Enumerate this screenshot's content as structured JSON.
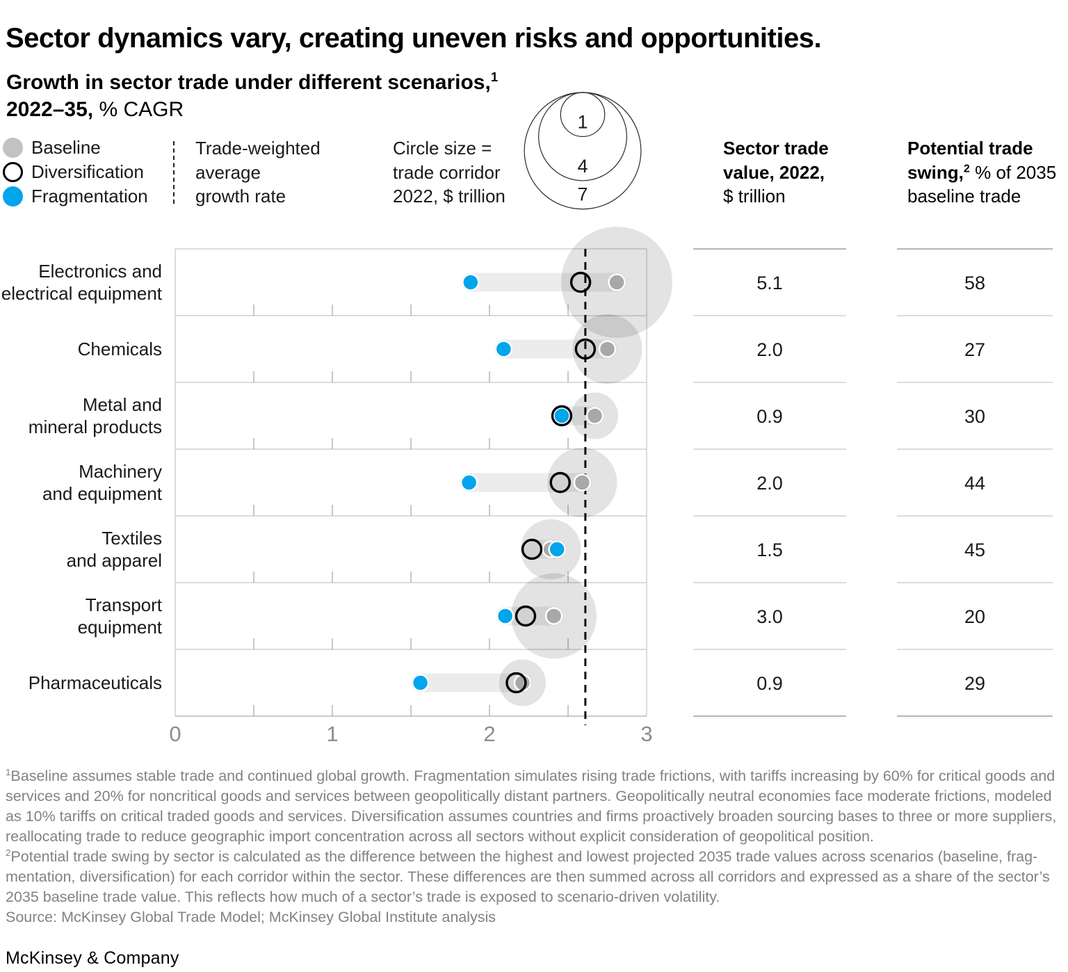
{
  "title": "Sector dynamics vary, creating uneven risks and opportunities.",
  "subtitle": {
    "line1_bold": "Growth in sector trade under different scenarios,",
    "line1_sup": "1",
    "line2_bold": "2022–35,",
    "line2_regular": " % CAGR"
  },
  "legend": {
    "baseline_label": "Baseline",
    "diversification_label": "Diversification",
    "fragmentation_label": "Fragmentation",
    "avg_line_lines": [
      "Trade-weighted",
      "average",
      "growth rate"
    ],
    "size_lines": [
      "Circle size =",
      "trade corridor",
      "2022, $ trillion"
    ]
  },
  "table": {
    "col1_header_lines": [
      "Sector trade",
      "value, 2022,",
      "$ trillion"
    ],
    "col2_header": {
      "line1": "Potential trade",
      "line2_bold": "swing,",
      "line2_sup": "2",
      "line2_rest": " % of 2035",
      "line3": "baseline trade"
    }
  },
  "chart_data": {
    "type": "scatter",
    "title": "Growth in sector trade under different scenarios, 2022–35, % CAGR",
    "x_axis": {
      "min": 0,
      "max": 3,
      "major_ticks": [
        0,
        1,
        2,
        3
      ],
      "minor_tick_step": 0.5
    },
    "series_names": [
      "Baseline",
      "Diversification",
      "Fragmentation"
    ],
    "trade_weighted_average_growth": 2.61,
    "bubble_size_legend_values": [
      1,
      4,
      7
    ],
    "bubble_size_meaning": "trade corridor 2022, $ trillion",
    "rows": [
      {
        "sector": "Electronics and electrical equipment",
        "label_lines": [
          "Electronics and",
          "electrical equipment"
        ],
        "baseline": 2.81,
        "diversification": 2.58,
        "fragmentation": 1.88,
        "trade_value_2022_usd_trillion": "5.1",
        "potential_trade_swing_pct": "58"
      },
      {
        "sector": "Chemicals",
        "label_lines": [
          "Chemicals"
        ],
        "baseline": 2.75,
        "diversification": 2.61,
        "fragmentation": 2.09,
        "trade_value_2022_usd_trillion": "2.0",
        "potential_trade_swing_pct": "27"
      },
      {
        "sector": "Metal and mineral products",
        "label_lines": [
          "Metal and",
          "mineral products"
        ],
        "baseline": 2.67,
        "diversification": 2.46,
        "fragmentation": 2.46,
        "trade_value_2022_usd_trillion": "0.9",
        "potential_trade_swing_pct": "30"
      },
      {
        "sector": "Machinery and equipment",
        "label_lines": [
          "Machinery",
          "and equipment"
        ],
        "baseline": 2.59,
        "diversification": 2.45,
        "fragmentation": 1.87,
        "trade_value_2022_usd_trillion": "2.0",
        "potential_trade_swing_pct": "44"
      },
      {
        "sector": "Textiles and apparel",
        "label_lines": [
          "Textiles",
          "and apparel"
        ],
        "baseline": 2.39,
        "diversification": 2.27,
        "fragmentation": 2.43,
        "trade_value_2022_usd_trillion": "1.5",
        "potential_trade_swing_pct": "45"
      },
      {
        "sector": "Transport equipment",
        "label_lines": [
          "Transport",
          "equipment"
        ],
        "baseline": 2.41,
        "diversification": 2.23,
        "fragmentation": 2.1,
        "trade_value_2022_usd_trillion": "3.0",
        "potential_trade_swing_pct": "20"
      },
      {
        "sector": "Pharmaceuticals",
        "label_lines": [
          "Pharmaceuticals"
        ],
        "baseline": 2.21,
        "diversification": 2.17,
        "fragmentation": 1.56,
        "trade_value_2022_usd_trillion": "0.9",
        "potential_trade_swing_pct": "29"
      }
    ]
  },
  "footnotes": [
    {
      "sup": "1",
      "lines": [
        "Baseline assumes stable trade and continued global growth. Fragmentation simulates rising trade frictions, with tariffs increasing by 60% for critical goods and",
        "services and 20% for noncritical goods and services between geopolitically distant partners. Geopolitically neutral economies face moderate frictions, modeled",
        "as 10% tariffs on critical traded goods and services. Diversification assumes countries and firms proactively broaden sourcing bases to three or more suppliers,",
        "reallocating trade to reduce geographic import concentration across all sectors without explicit consideration of geopolitical position."
      ]
    },
    {
      "sup": "2",
      "lines": [
        "Potential trade swing by sector is calculated as the difference between the highest and lowest projected 2035 trade values across scenarios (baseline, frag-",
        "mentation, diversification) for each corridor within the sector. These differences are then summed across all corridors and expressed as a share of the sector’s",
        "2035 baseline trade value. This reflects how much of a sector’s trade is exposed to scenario-driven volatility."
      ]
    }
  ],
  "source": "Source: McKinsey Global Trade Model; McKinsey Global Institute analysis",
  "brand": "McKinsey & Company",
  "colors": {
    "fragmentation_blue": "#00A5EC",
    "baseline_gray": "#A8A8A8",
    "legend_baseline_gray": "#C2C2C2",
    "diversification_ring": "#000000",
    "bubble_fill": "#000000",
    "grid_line": "#C6C6C6",
    "axis_text": "#8C8C8C",
    "footnote_text": "#828282"
  }
}
